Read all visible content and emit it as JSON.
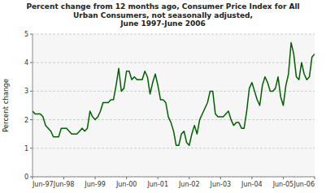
{
  "chart_data": {
    "type": "line",
    "title": "Percent change from 12 months ago, Consumer Price Index for All\nUrban Consumers, not seasonally adjusted,\nJune 1997-June 2006",
    "y_label": "Percent change",
    "color": "#006000",
    "grid": true,
    "ylim": [
      0,
      5
    ],
    "yticks": [
      0,
      1,
      2,
      3,
      4,
      5
    ],
    "categories": [
      "Jun-97",
      null,
      null,
      null,
      null,
      null,
      null,
      null,
      null,
      null,
      null,
      null,
      "Jun-98",
      null,
      null,
      null,
      null,
      null,
      null,
      null,
      null,
      null,
      null,
      null,
      "Jun-99",
      null,
      null,
      null,
      null,
      null,
      null,
      null,
      null,
      null,
      null,
      null,
      "Jun-00",
      null,
      null,
      null,
      null,
      null,
      null,
      null,
      null,
      null,
      null,
      null,
      "Jun-01",
      null,
      null,
      null,
      null,
      null,
      null,
      null,
      null,
      null,
      null,
      null,
      "Jun-02",
      null,
      null,
      null,
      null,
      null,
      null,
      null,
      null,
      null,
      null,
      null,
      "Jun-03",
      null,
      null,
      null,
      null,
      null,
      null,
      null,
      null,
      null,
      null,
      null,
      "Jun-04",
      null,
      null,
      null,
      null,
      null,
      null,
      null,
      null,
      null,
      null,
      null,
      "Jun-05",
      null,
      null,
      null,
      null,
      null,
      null,
      null,
      null,
      null,
      null,
      null,
      "Jun-06"
    ],
    "values": [
      2.3,
      2.2,
      2.2,
      2.2,
      2.1,
      1.8,
      1.7,
      1.6,
      1.4,
      1.4,
      1.4,
      1.7,
      1.7,
      1.7,
      1.6,
      1.5,
      1.5,
      1.5,
      1.6,
      1.7,
      1.6,
      1.7,
      2.3,
      2.1,
      2.0,
      2.1,
      2.3,
      2.6,
      2.6,
      2.6,
      2.7,
      2.7,
      3.2,
      3.8,
      3.0,
      3.1,
      3.7,
      3.7,
      3.4,
      3.5,
      3.4,
      3.4,
      3.4,
      3.7,
      3.5,
      2.9,
      3.3,
      3.6,
      3.2,
      2.7,
      2.7,
      2.6,
      2.1,
      1.9,
      1.6,
      1.1,
      1.1,
      1.5,
      1.6,
      1.2,
      1.1,
      1.5,
      1.8,
      1.5,
      2.0,
      2.2,
      2.4,
      2.6,
      3.0,
      3.0,
      2.2,
      2.1,
      2.1,
      2.1,
      2.2,
      2.3,
      2.0,
      1.8,
      1.9,
      1.9,
      1.7,
      1.7,
      2.3,
      3.1,
      3.3,
      3.0,
      2.7,
      2.5,
      3.2,
      3.5,
      3.3,
      3.0,
      3.0,
      3.1,
      3.5,
      2.8,
      2.5,
      3.2,
      3.6,
      4.7,
      4.3,
      3.5,
      3.4,
      4.0,
      3.6,
      3.4,
      3.5,
      4.2,
      4.3
    ]
  }
}
